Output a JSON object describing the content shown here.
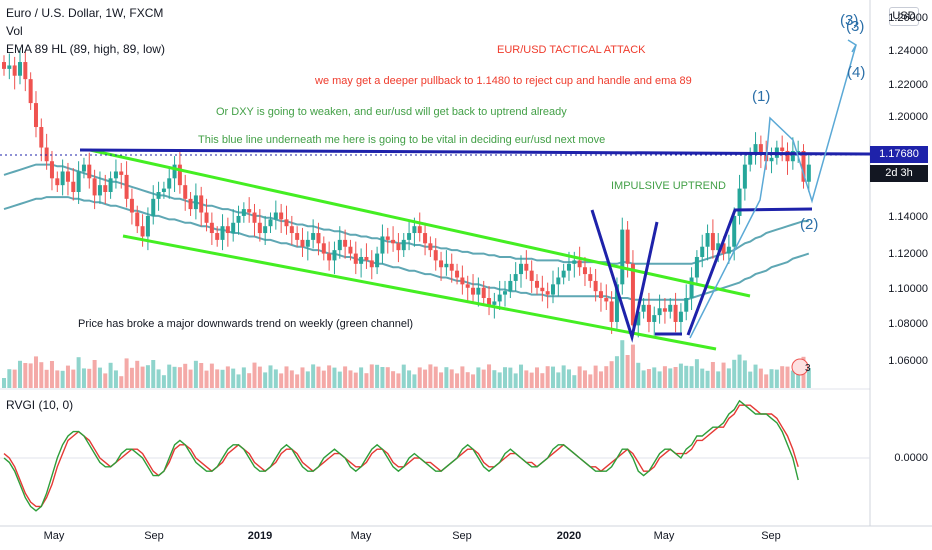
{
  "legend": {
    "symbol": "Euro / U.S. Dollar, 1W, FXCM",
    "volume": "Vol",
    "ema": "EMA 89 HL (89, high, 89, low)"
  },
  "currency_button": "USD",
  "annotations": {
    "title": "EUR/USD TACTICAL ATTACK",
    "line1": "we may get a deeper pullback to 1.1480 to reject cup and handle and ema 89",
    "line2": "Or DXY is going to weaken, and eur/usd will get back to uptrend already",
    "line3": "This blue line underneath me here is going to be vital in deciding eur/usd next move",
    "impulsive": "IMPULSIVE UPTREND",
    "channel_note": "Price has broke a major downwards trend on weekly (green channel)",
    "colors": {
      "red": "#ef3b2c",
      "green": "#43a047"
    }
  },
  "wave_labels": {
    "w1": "(1)",
    "w2": "(2)",
    "w3": "(3)",
    "w4": "(4)"
  },
  "price_badges": {
    "last": "1.17680",
    "countdown": "2d 3h",
    "colors": {
      "last_bg": "#1e22aa",
      "countdown_bg": "#131722",
      "text": "#ffffff"
    }
  },
  "volume_badge": "3",
  "rvgi": {
    "label": "RVGI (10, 0)",
    "tick": "0.0000",
    "colors": {
      "main": "#2e9e3a",
      "signal": "#e53935"
    }
  },
  "y_ticks": [
    "1.26000",
    "1.24000",
    "1.22000",
    "1.20000",
    "1.18000",
    "1.16000",
    "1.14000",
    "1.12000",
    "1.10000",
    "1.08000",
    "1.06000"
  ],
  "x_ticks": [
    {
      "label": "May",
      "bold": false
    },
    {
      "label": "Sep",
      "bold": false
    },
    {
      "label": "2019",
      "bold": true
    },
    {
      "label": "May",
      "bold": false
    },
    {
      "label": "Sep",
      "bold": false
    },
    {
      "label": "2020",
      "bold": true
    },
    {
      "label": "May",
      "bold": false
    },
    {
      "label": "Sep",
      "bold": false
    }
  ],
  "chart_data": {
    "type": "candlestick",
    "symbol": "EURUSD",
    "timeframe": "1W",
    "ylim": [
      1.05,
      1.265
    ],
    "colors": {
      "up": "#26a69a",
      "down": "#ef5350",
      "vol_up": "#8fd4cc",
      "vol_down": "#f4a9a7",
      "ema": "#5fa7b4",
      "resistance": "#1e22aa",
      "channel": "#44ee22",
      "projection": "#5ba9d6"
    },
    "closes": [
      1.232,
      1.234,
      1.228,
      1.236,
      1.226,
      1.212,
      1.198,
      1.186,
      1.178,
      1.168,
      1.164,
      1.172,
      1.166,
      1.16,
      1.172,
      1.176,
      1.168,
      1.158,
      1.164,
      1.16,
      1.168,
      1.172,
      1.17,
      1.156,
      1.148,
      1.14,
      1.134,
      1.146,
      1.156,
      1.16,
      1.162,
      1.168,
      1.176,
      1.164,
      1.156,
      1.15,
      1.158,
      1.148,
      1.142,
      1.136,
      1.132,
      1.14,
      1.136,
      1.142,
      1.146,
      1.15,
      1.148,
      1.142,
      1.136,
      1.14,
      1.144,
      1.148,
      1.144,
      1.14,
      1.136,
      1.132,
      1.128,
      1.132,
      1.136,
      1.13,
      1.124,
      1.12,
      1.126,
      1.132,
      1.128,
      1.124,
      1.118,
      1.122,
      1.12,
      1.116,
      1.124,
      1.134,
      1.132,
      1.13,
      1.126,
      1.132,
      1.136,
      1.14,
      1.136,
      1.13,
      1.126,
      1.12,
      1.116,
      1.118,
      1.114,
      1.11,
      1.106,
      1.104,
      1.1,
      1.104,
      1.098,
      1.094,
      1.096,
      1.1,
      1.102,
      1.108,
      1.112,
      1.118,
      1.114,
      1.108,
      1.104,
      1.102,
      1.1,
      1.106,
      1.11,
      1.114,
      1.118,
      1.12,
      1.116,
      1.112,
      1.108,
      1.102,
      1.098,
      1.096,
      1.084,
      1.106,
      1.138,
      1.118,
      1.082,
      1.09,
      1.094,
      1.084,
      1.088,
      1.092,
      1.09,
      1.094,
      1.084,
      1.09,
      1.098,
      1.11,
      1.122,
      1.128,
      1.136,
      1.126,
      1.13,
      1.124,
      1.128,
      1.146,
      1.162,
      1.176,
      1.182,
      1.188,
      1.182,
      1.178,
      1.18,
      1.186,
      1.184,
      1.178,
      1.184,
      1.184,
      1.166,
      1.176
    ],
    "ema89_high": [
      1.17,
      1.171,
      1.172,
      1.173,
      1.174,
      1.175,
      1.176,
      1.176,
      1.176,
      1.176,
      1.175,
      1.175,
      1.174,
      1.173,
      1.172,
      1.171,
      1.17,
      1.169,
      1.168,
      1.167,
      1.166,
      1.166,
      1.165,
      1.164,
      1.163,
      1.162,
      1.161,
      1.16,
      1.159,
      1.158,
      1.158,
      1.157,
      1.156,
      1.156,
      1.155,
      1.154,
      1.154,
      1.153,
      1.152,
      1.152,
      1.151,
      1.15,
      1.15,
      1.149,
      1.148,
      1.148,
      1.147,
      1.146,
      1.146,
      1.145,
      1.145,
      1.144,
      1.143,
      1.143,
      1.142,
      1.141,
      1.141,
      1.14,
      1.14,
      1.139,
      1.138,
      1.138,
      1.137,
      1.137,
      1.136,
      1.135,
      1.135,
      1.134,
      1.134,
      1.133,
      1.133,
      1.132,
      1.131,
      1.131,
      1.13,
      1.13,
      1.13,
      1.129,
      1.129,
      1.128,
      1.128,
      1.128,
      1.127,
      1.127,
      1.126,
      1.126,
      1.125,
      1.125,
      1.124,
      1.124,
      1.124,
      1.123,
      1.123,
      1.122,
      1.122,
      1.122,
      1.121,
      1.121,
      1.121,
      1.121,
      1.12,
      1.12,
      1.12,
      1.12,
      1.12,
      1.119,
      1.119,
      1.119,
      1.119,
      1.119,
      1.119,
      1.119,
      1.119,
      1.119,
      1.118,
      1.118,
      1.119,
      1.119,
      1.118,
      1.118,
      1.118,
      1.118,
      1.118,
      1.118,
      1.118,
      1.118,
      1.118,
      1.118,
      1.118,
      1.118,
      1.119,
      1.12,
      1.121,
      1.122,
      1.123,
      1.124,
      1.125,
      1.126,
      1.128,
      1.13,
      1.131,
      1.133,
      1.134,
      1.136,
      1.137,
      1.138,
      1.139,
      1.14,
      1.141,
      1.142,
      1.143,
      1.143
    ],
    "ema89_low": [
      1.15,
      1.151,
      1.152,
      1.153,
      1.154,
      1.155,
      1.156,
      1.156,
      1.157,
      1.157,
      1.157,
      1.157,
      1.157,
      1.156,
      1.156,
      1.155,
      1.155,
      1.154,
      1.154,
      1.153,
      1.152,
      1.152,
      1.151,
      1.15,
      1.149,
      1.149,
      1.148,
      1.147,
      1.146,
      1.146,
      1.145,
      1.144,
      1.144,
      1.143,
      1.142,
      1.142,
      1.141,
      1.14,
      1.14,
      1.139,
      1.138,
      1.138,
      1.137,
      1.136,
      1.136,
      1.135,
      1.134,
      1.134,
      1.133,
      1.132,
      1.132,
      1.131,
      1.13,
      1.13,
      1.129,
      1.128,
      1.128,
      1.127,
      1.126,
      1.126,
      1.125,
      1.124,
      1.124,
      1.123,
      1.122,
      1.122,
      1.121,
      1.12,
      1.12,
      1.119,
      1.118,
      1.118,
      1.117,
      1.116,
      1.116,
      1.115,
      1.114,
      1.114,
      1.113,
      1.112,
      1.112,
      1.111,
      1.11,
      1.11,
      1.109,
      1.108,
      1.108,
      1.107,
      1.106,
      1.106,
      1.105,
      1.104,
      1.104,
      1.103,
      1.103,
      1.102,
      1.102,
      1.101,
      1.101,
      1.1,
      1.1,
      1.1,
      1.099,
      1.099,
      1.099,
      1.099,
      1.099,
      1.099,
      1.099,
      1.099,
      1.099,
      1.099,
      1.099,
      1.099,
      1.098,
      1.098,
      1.098,
      1.098,
      1.097,
      1.097,
      1.097,
      1.097,
      1.097,
      1.097,
      1.097,
      1.097,
      1.097,
      1.097,
      1.097,
      1.098,
      1.099,
      1.1,
      1.101,
      1.102,
      1.103,
      1.104,
      1.105,
      1.106,
      1.107,
      1.109,
      1.11,
      1.112,
      1.113,
      1.114,
      1.116,
      1.117,
      1.118,
      1.119,
      1.121,
      1.122,
      1.123,
      1.124
    ],
    "rvgi_main": [
      0.0,
      -0.1,
      -0.3,
      -0.6,
      -0.9,
      -1.1,
      -1.2,
      -1.1,
      -0.8,
      -0.4,
      0.0,
      0.3,
      0.5,
      0.6,
      0.6,
      0.5,
      0.3,
      0.1,
      -0.1,
      -0.2,
      -0.2,
      -0.1,
      0.1,
      0.2,
      0.2,
      0.1,
      0.0,
      -0.2,
      -0.4,
      -0.4,
      -0.3,
      0.0,
      0.3,
      0.4,
      0.3,
      0.1,
      -0.1,
      -0.2,
      -0.3,
      -0.3,
      -0.2,
      0.0,
      0.2,
      0.3,
      0.3,
      0.2,
      0.0,
      -0.2,
      -0.3,
      -0.3,
      -0.2,
      0.0,
      0.2,
      0.3,
      0.2,
      0.0,
      -0.2,
      -0.3,
      -0.3,
      -0.2,
      0.0,
      0.1,
      0.2,
      0.1,
      0.0,
      -0.2,
      -0.3,
      -0.2,
      0.0,
      0.2,
      0.3,
      0.2,
      0.0,
      -0.2,
      -0.3,
      -0.2,
      0.0,
      0.1,
      0.0,
      -0.1,
      -0.2,
      -0.3,
      -0.3,
      -0.2,
      -0.1,
      0.0,
      0.2,
      0.3,
      0.2,
      0.0,
      -0.2,
      -0.3,
      -0.2,
      -0.1,
      0.1,
      0.2,
      0.1,
      0.0,
      -0.1,
      -0.2,
      -0.2,
      -0.1,
      0.0,
      0.2,
      0.3,
      0.3,
      0.2,
      0.1,
      0.0,
      -0.1,
      -0.2,
      -0.3,
      -0.3,
      -0.3,
      -0.2,
      0.0,
      0.2,
      0.2,
      0.0,
      -0.3,
      -0.4,
      -0.3,
      -0.1,
      0.1,
      0.2,
      0.2,
      0.1,
      0.0,
      0.2,
      0.3,
      0.5,
      0.5,
      0.6,
      0.7,
      0.7,
      0.8,
      1.0,
      1.1,
      1.3,
      1.2,
      1.1,
      1.0,
      1.0,
      1.0,
      0.9,
      0.8,
      0.6,
      0.3,
      0.0,
      -0.5
    ],
    "rvgi_signal": [
      0.1,
      0.0,
      -0.2,
      -0.5,
      -0.8,
      -1.0,
      -1.1,
      -1.1,
      -0.9,
      -0.6,
      -0.2,
      0.1,
      0.4,
      0.5,
      0.6,
      0.5,
      0.4,
      0.2,
      0.0,
      -0.1,
      -0.2,
      -0.1,
      0.0,
      0.1,
      0.2,
      0.2,
      0.1,
      -0.1,
      -0.3,
      -0.4,
      -0.3,
      -0.1,
      0.2,
      0.3,
      0.3,
      0.2,
      0.0,
      -0.1,
      -0.2,
      -0.3,
      -0.2,
      -0.1,
      0.1,
      0.2,
      0.3,
      0.2,
      0.1,
      -0.1,
      -0.2,
      -0.3,
      -0.2,
      -0.1,
      0.1,
      0.2,
      0.2,
      0.1,
      -0.1,
      -0.2,
      -0.3,
      -0.2,
      -0.1,
      0.0,
      0.1,
      0.1,
      0.0,
      -0.1,
      -0.2,
      -0.2,
      -0.1,
      0.1,
      0.2,
      0.2,
      0.1,
      -0.1,
      -0.2,
      -0.2,
      -0.1,
      0.0,
      0.0,
      -0.1,
      -0.1,
      -0.2,
      -0.3,
      -0.2,
      -0.1,
      0.0,
      0.1,
      0.2,
      0.2,
      0.1,
      -0.1,
      -0.2,
      -0.2,
      -0.1,
      0.0,
      0.1,
      0.1,
      0.0,
      -0.1,
      -0.1,
      -0.2,
      -0.1,
      0.0,
      0.1,
      0.2,
      0.3,
      0.2,
      0.1,
      0.0,
      -0.1,
      -0.2,
      -0.2,
      -0.3,
      -0.2,
      -0.1,
      0.0,
      0.1,
      0.2,
      0.1,
      -0.1,
      -0.3,
      -0.3,
      -0.2,
      0.0,
      0.1,
      0.2,
      0.1,
      0.1,
      0.1,
      0.2,
      0.4,
      0.4,
      0.5,
      0.6,
      0.7,
      0.7,
      0.9,
      1.0,
      1.2,
      1.2,
      1.2,
      1.1,
      1.0,
      1.0,
      1.0,
      0.9,
      0.7,
      0.5,
      0.2,
      -0.2
    ]
  }
}
